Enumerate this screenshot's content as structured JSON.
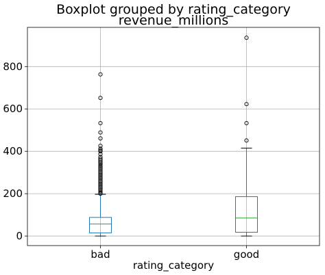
{
  "chart_data": {
    "type": "box",
    "title": "Boxplot grouped by rating_category",
    "subtitle": "revenue_millions",
    "xlabel": "rating_category",
    "ylabel": "",
    "ylim": [
      -45,
      985
    ],
    "yticks": [
      0,
      200,
      400,
      600,
      800
    ],
    "grid": true,
    "colors": {
      "box": "#1f77b4",
      "median": "#2ca02c",
      "whisker": "#1f77b4",
      "cap": "#000000",
      "flier": "#000000",
      "grid": "#b0b0b0"
    },
    "categories": [
      "bad",
      "good"
    ],
    "boxes": [
      {
        "category": "bad",
        "whisker_low": 0,
        "q1": 15,
        "median": 57,
        "q3": 88,
        "whisker_high": 197,
        "outliers": [
          763,
          652,
          533,
          489,
          461,
          426,
          412,
          405,
          400,
          387,
          373,
          365,
          358,
          350,
          343,
          337,
          330,
          323,
          316,
          309,
          302,
          295,
          288,
          281,
          274,
          267,
          260,
          253,
          246,
          239,
          232,
          225,
          218,
          211,
          205,
          200
        ]
      },
      {
        "category": "good",
        "whisker_low": 0,
        "q1": 18,
        "median": 85,
        "q3": 186,
        "whisker_high": 415,
        "outliers": [
          936,
          623,
          533,
          451
        ]
      }
    ]
  }
}
